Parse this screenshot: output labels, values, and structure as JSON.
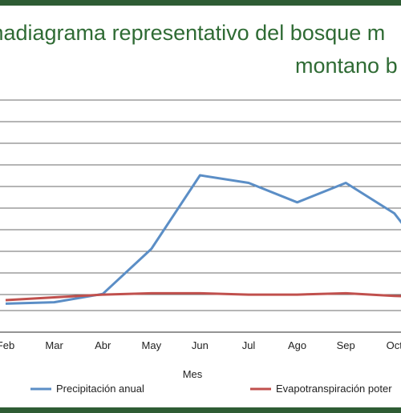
{
  "title_line1": "madiagrama representativo del bosque m",
  "title_line2": "montano b",
  "chart_data": {
    "type": "line",
    "categories": [
      "Feb",
      "Mar",
      "Abr",
      "May",
      "Jun",
      "Jul",
      "Ago",
      "Sep",
      "Oct"
    ],
    "xlabel": "Mes",
    "ylabel": "",
    "grid": true,
    "legend_position": "bottom",
    "series": [
      {
        "name": "Precipitación anual",
        "color": "#5b8ec6",
        "values": [
          10,
          12,
          24,
          89,
          195,
          184,
          156,
          184,
          140
        ]
      },
      {
        "name": "Evapotranspiración poter",
        "color": "#c0504d",
        "values": [
          15,
          19,
          23,
          25,
          25,
          23,
          23,
          25,
          21
        ]
      }
    ]
  }
}
